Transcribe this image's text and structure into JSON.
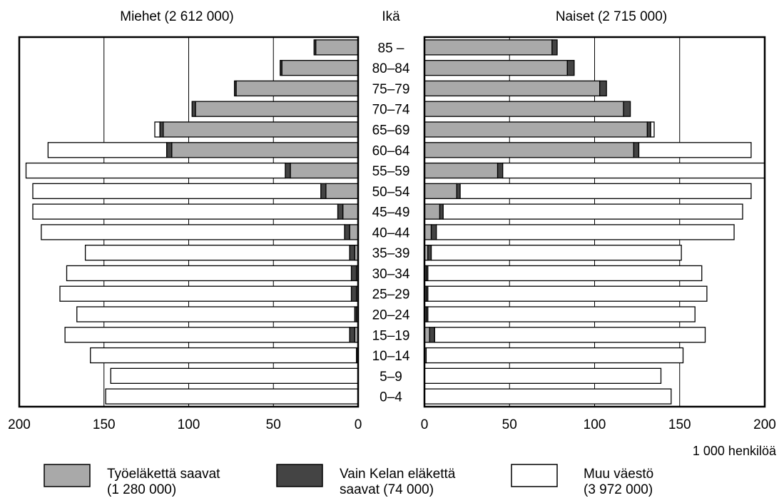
{
  "chart_data": {
    "type": "bar",
    "orientation": "horizontal-population-pyramid",
    "axis_label_center": "Ikä",
    "unit_label": "1 000 henkilöä",
    "grid": true,
    "legend_position": "bottom",
    "xlim": [
      0,
      200
    ],
    "x_ticks": [
      "200",
      "150",
      "100",
      "50",
      "0"
    ],
    "x_ticks_right": [
      "0",
      "50",
      "100",
      "150",
      "200"
    ],
    "panels": [
      {
        "name": "Miehet (2 612 000)",
        "side": "left"
      },
      {
        "name": "Naiset (2 715 000)",
        "side": "right"
      }
    ],
    "categories": [
      "85 –",
      "80–84",
      "75–79",
      "70–74",
      "65–69",
      "60–64",
      "55–59",
      "50–54",
      "45–49",
      "40–44",
      "35–39",
      "30–34",
      "25–29",
      "20–24",
      "15–19",
      "10–14",
      "5–9",
      "0–4"
    ],
    "series": [
      {
        "name": "Työeläkettä saavat",
        "total_label": "(1 280 000)",
        "color": "#a9a9a9",
        "men": [
          25,
          45,
          72,
          96,
          115,
          110,
          40,
          19,
          9,
          5,
          2,
          1,
          1,
          1,
          2,
          0,
          0,
          0
        ],
        "women": [
          75,
          84,
          103,
          117,
          131,
          123,
          43,
          19,
          9,
          4,
          2,
          1,
          1,
          1,
          3,
          1,
          0,
          0
        ]
      },
      {
        "name": "Vain Kelan eläkettä",
        "name_line2": "saavat",
        "total_label": "(74 000)",
        "color": "#444444",
        "men": [
          1,
          1,
          1,
          2,
          2,
          3,
          3,
          3,
          3,
          3,
          3,
          3,
          3,
          1,
          3,
          1,
          0,
          0
        ],
        "women": [
          3,
          4,
          4,
          4,
          2,
          3,
          3,
          2,
          2,
          3,
          2,
          1,
          1,
          1,
          3,
          0,
          0,
          0
        ],
        "name_with_total_line2": "saavat (74 000)"
      },
      {
        "name": "Muu väestö",
        "total_label": "(3 972 000)",
        "color": "#ffffff",
        "men": [
          0,
          0,
          0,
          0,
          3,
          70,
          153,
          170,
          180,
          179,
          156,
          168,
          172,
          164,
          168,
          157,
          146,
          149
        ],
        "women": [
          0,
          0,
          0,
          0,
          2,
          66,
          154,
          171,
          176,
          175,
          147,
          161,
          164,
          157,
          159,
          151,
          139,
          145
        ]
      }
    ]
  }
}
